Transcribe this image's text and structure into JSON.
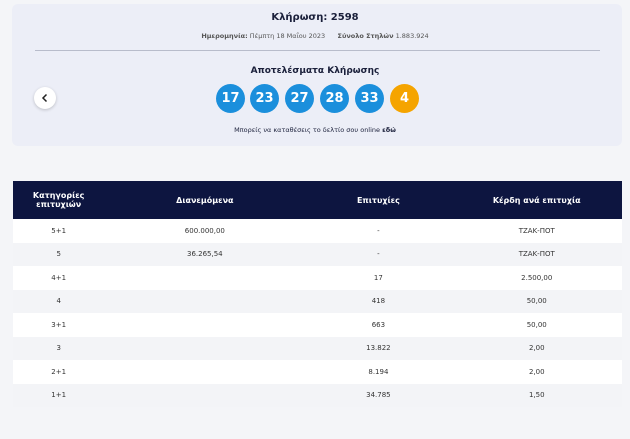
{
  "header": {
    "title": "Κλήρωση: 2598",
    "date_label": "Ημερομηνία:",
    "date_value": "Πέμπτη 18 Μαΐου 2023",
    "columns_label": "Σύνολο Στηλών",
    "columns_value": "1.883.924"
  },
  "results": {
    "title": "Αποτελέσματα Κλήρωσης",
    "numbers": [
      17,
      23,
      27,
      28,
      33
    ],
    "joker": 4,
    "note": "Μπορείς να καταθέσεις το δελτίο σου online",
    "link": "εδώ"
  },
  "table": {
    "headers": [
      "Κατηγορίες επιτυχιών",
      "Διανεμόμενα",
      "Επιτυχίες",
      "Κέρδη ανά επιτυχία"
    ],
    "rows": [
      [
        "5+1",
        "600.000,00",
        "-",
        "ΤΖΑΚ-ΠΟΤ"
      ],
      [
        "5",
        "36.265,54",
        "-",
        "ΤΖΑΚ-ΠΟΤ"
      ],
      [
        "4+1",
        null,
        "17",
        "2.500,00"
      ],
      [
        "4",
        null,
        "418",
        "50,00"
      ],
      [
        "3+1",
        null,
        "663",
        "50,00"
      ],
      [
        "3",
        null,
        "13.822",
        "2,00"
      ],
      [
        "2+1",
        null,
        "8.194",
        "2,00"
      ],
      [
        "1+1",
        null,
        "34.785",
        "1,50"
      ]
    ]
  }
}
